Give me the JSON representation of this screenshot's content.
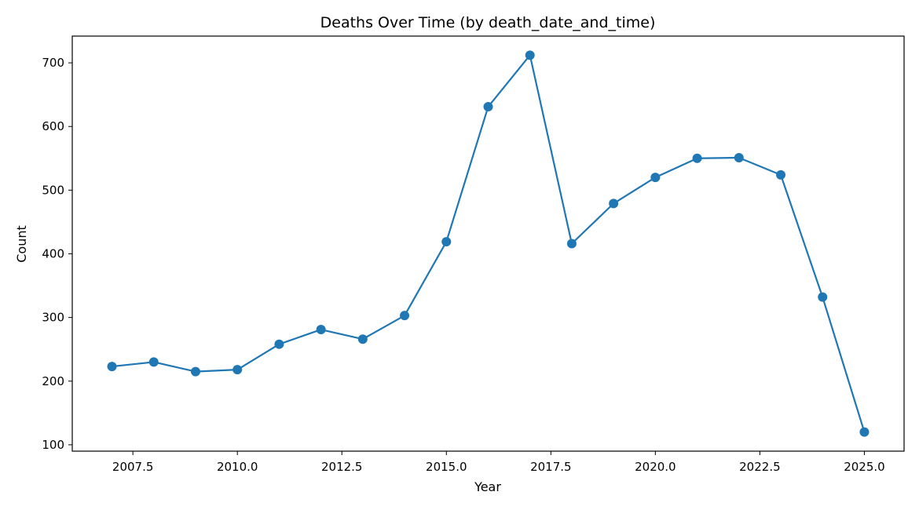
{
  "chart_data": {
    "type": "line",
    "title": "Deaths Over Time (by death_date_and_time)",
    "xlabel": "Year",
    "ylabel": "Count",
    "xlim": [
      2006.05,
      2025.95
    ],
    "ylim": [
      90,
      742
    ],
    "xticks": [
      2007.5,
      2010.0,
      2012.5,
      2015.0,
      2017.5,
      2020.0,
      2022.5,
      2025.0
    ],
    "xtick_labels": [
      "2007.5",
      "2010.0",
      "2012.5",
      "2015.0",
      "2017.5",
      "2020.0",
      "2022.5",
      "2025.0"
    ],
    "yticks": [
      100,
      200,
      300,
      400,
      500,
      600,
      700
    ],
    "ytick_labels": [
      "100",
      "200",
      "300",
      "400",
      "500",
      "600",
      "700"
    ],
    "grid": false,
    "series": [
      {
        "name": "Deaths",
        "color": "#1f77b4",
        "marker": "circle",
        "x": [
          2007,
          2008,
          2009,
          2010,
          2011,
          2012,
          2013,
          2014,
          2015,
          2016,
          2017,
          2018,
          2019,
          2020,
          2021,
          2022,
          2023,
          2024,
          2025
        ],
        "y": [
          223,
          230,
          215,
          218,
          258,
          281,
          266,
          303,
          419,
          631,
          712,
          416,
          479,
          520,
          550,
          551,
          524,
          332,
          120
        ]
      }
    ]
  }
}
